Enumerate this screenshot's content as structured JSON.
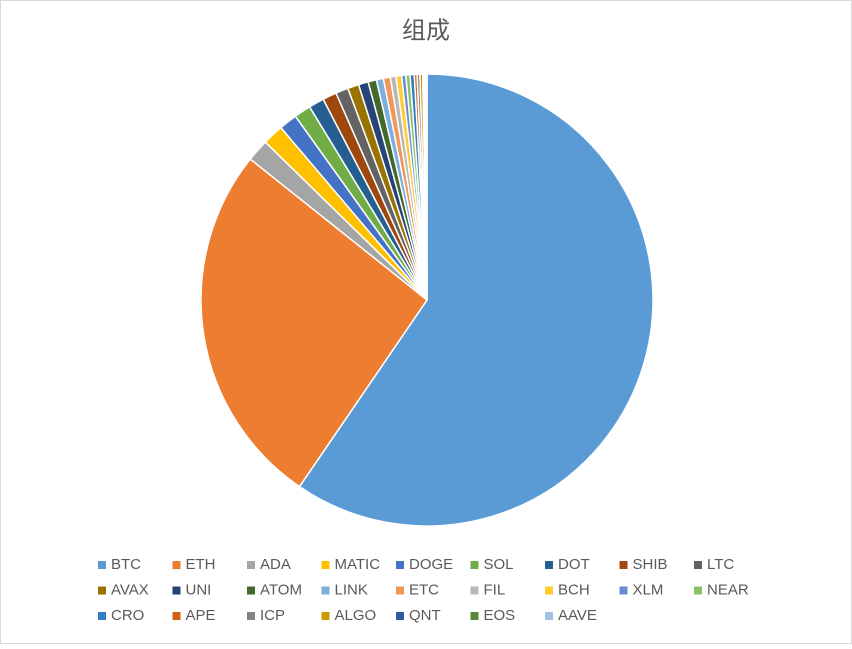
{
  "chart_data": {
    "type": "pie",
    "title": "组成",
    "categories": [
      "BTC",
      "ETH",
      "ADA",
      "MATIC",
      "DOGE",
      "SOL",
      "DOT",
      "SHIB",
      "LTC",
      "AVAX",
      "UNI",
      "ATOM",
      "LINK",
      "ETC",
      "FIL",
      "BCH",
      "XLM",
      "NEAR",
      "CRO",
      "APE",
      "ICP",
      "ALGO",
      "QNT",
      "EOS",
      "AAVE"
    ],
    "values": [
      59.6,
      26.2,
      1.6,
      1.5,
      1.3,
      1.2,
      1.1,
      1.0,
      0.9,
      0.8,
      0.7,
      0.6,
      0.5,
      0.5,
      0.4,
      0.4,
      0.3,
      0.3,
      0.3,
      0.2,
      0.2,
      0.2,
      0.1,
      0.1,
      0.1
    ],
    "colors": [
      "#5b9bd5",
      "#ed7d31",
      "#a5a5a5",
      "#ffc000",
      "#4472c4",
      "#70ad47",
      "#255e91",
      "#9e480e",
      "#636363",
      "#997300",
      "#264478",
      "#43682b",
      "#7cafdd",
      "#f1975a",
      "#b7b7b7",
      "#ffcd33",
      "#698ed0",
      "#8cc168",
      "#327dc2",
      "#d26012",
      "#848484",
      "#cc9a00",
      "#335aa1",
      "#5a8a39",
      "#9dc3e6"
    ],
    "legend": "bottom"
  }
}
